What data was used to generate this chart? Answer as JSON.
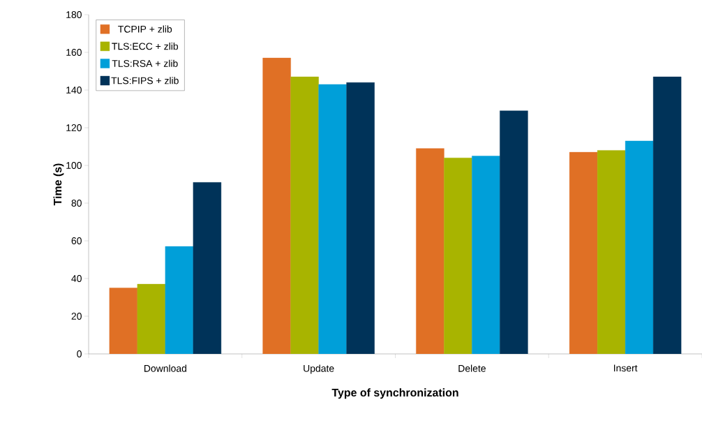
{
  "chart_data": {
    "type": "bar",
    "xlabel": "Type of synchronization",
    "ylabel": "Time (s)",
    "categories": [
      "Download",
      "Update",
      "Delete",
      "Insert"
    ],
    "series": [
      {
        "name": "TCPIP + zlib",
        "color": "#e07025",
        "values": [
          35,
          157,
          109,
          107
        ]
      },
      {
        "name": "TLS:ECC + zlib",
        "color": "#a8b400",
        "values": [
          37,
          147,
          104,
          108
        ]
      },
      {
        "name": "TLS:RSA + zlib",
        "color": "#009fd9",
        "values": [
          57,
          143,
          105,
          113
        ]
      },
      {
        "name": "TLS:FIPS + zlib",
        "color": "#003359",
        "values": [
          91,
          144,
          129,
          147
        ]
      }
    ],
    "ylim": [
      0,
      180
    ],
    "yticks": [
      0,
      20,
      40,
      60,
      80,
      100,
      120,
      140,
      160,
      180
    ],
    "grid": false,
    "legend": "top left"
  }
}
